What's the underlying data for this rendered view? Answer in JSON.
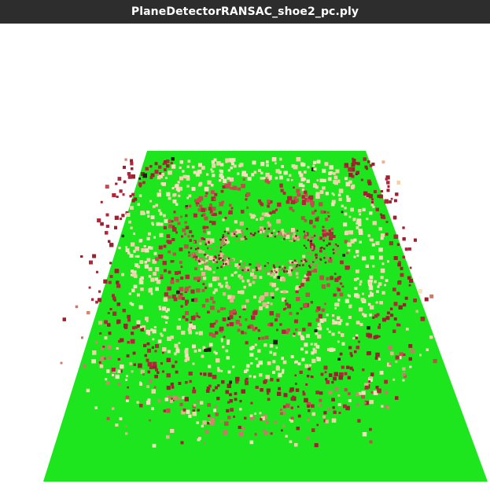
{
  "window": {
    "title": "PlaneDetectorRANSAC_shoe2_pc.ply"
  },
  "scene": {
    "plane_color": "#1ee61e",
    "background_color": "#ffffff",
    "point_palette": [
      "#b3263a",
      "#9e2030",
      "#c94a4e",
      "#d9826e",
      "#e8b48f",
      "#f2d2aa",
      "#f6e0bf",
      "#c87a6a",
      "#8a1f2a",
      "#2a1a18"
    ]
  }
}
